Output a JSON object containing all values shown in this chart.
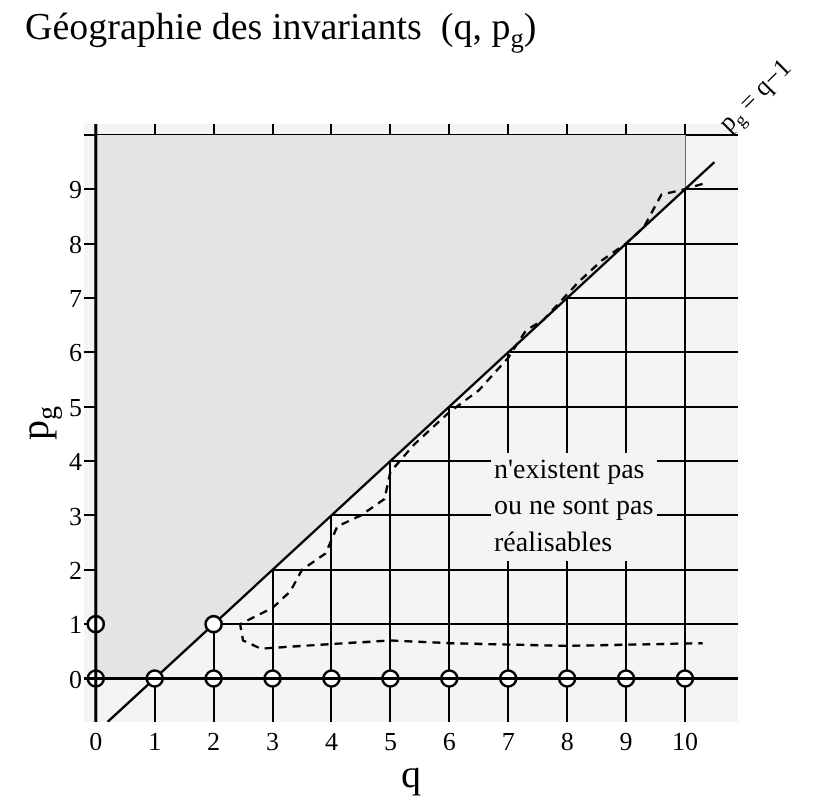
{
  "chart_data": {
    "type": "line",
    "title": "Géographie des invariants  (q, p$_{g}$)",
    "xlabel": "q",
    "ylabel": "p$_{g}$",
    "xlim": [
      -0.2,
      10.9
    ],
    "ylim": [
      -0.8,
      10.2
    ],
    "xticks": [
      0,
      1,
      2,
      3,
      4,
      5,
      6,
      7,
      8,
      9,
      10
    ],
    "yticks": [
      0,
      1,
      2,
      3,
      4,
      5,
      6,
      7,
      8,
      9,
      {
        "value": 10,
        "label": null
      }
    ],
    "grid": true,
    "series": [
      {
        "type": "area",
        "color": "#e4e4e6",
        "x": [
          0,
          0,
          1,
          10,
          10
        ],
        "values": [
          10,
          0,
          0,
          9,
          10
        ]
      },
      {
        "color": "#000000",
        "line_style": "solid",
        "x": [
          0.2,
          10.5
        ],
        "values": [
          -0.8,
          9.5
        ]
      },
      {
        "type": "line",
        "color": "#000000",
        "line_style": "dashed",
        "x": [
          10.3,
          10,
          9.6,
          9.3,
          9,
          8.6,
          8.2,
          7.6,
          7.3,
          7,
          6.5,
          6,
          5.4,
          5,
          4.9,
          4.5,
          4.1,
          3.9,
          3.5,
          3.3,
          3,
          2.45,
          2.5,
          2.8,
          3.5,
          5,
          6,
          8,
          10.3
        ],
        "values": [
          9.1,
          9,
          8.9,
          8.3,
          8,
          7.7,
          7.3,
          6.6,
          6.4,
          5.9,
          5.3,
          4.9,
          4.3,
          3.8,
          3.3,
          3,
          2.8,
          2.3,
          2,
          1.6,
          1.3,
          1,
          0.7,
          0.55,
          0.6,
          0.7,
          0.65,
          0.6,
          0.65
        ]
      },
      {
        "type": "scatter",
        "color": "#000000",
        "marker": "circle",
        "x": [
          0,
          1,
          2,
          3,
          4,
          5,
          6,
          7,
          8,
          9,
          10,
          0,
          2
        ],
        "values": [
          0,
          0,
          0,
          0,
          0,
          0,
          0,
          0,
          0,
          0,
          0,
          1,
          1
        ]
      }
    ],
    "annotations": [
      "n'existent pas\nou ne sont pas\nréalisables",
      "p$_{g}$ = q−1"
    ]
  }
}
